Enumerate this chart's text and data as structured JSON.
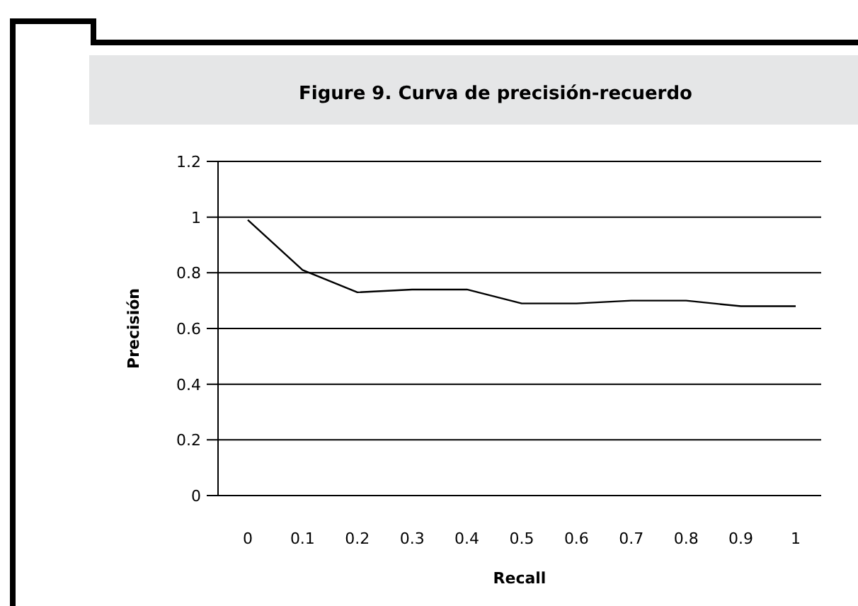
{
  "chart_data": {
    "type": "line",
    "title": "Figure 9. Curva de precisión-recuerdo",
    "xlabel": "Recall",
    "ylabel": "Precisión",
    "categories": [
      "0",
      "0.1",
      "0.2",
      "0.3",
      "0.4",
      "0.5",
      "0.6",
      "0.7",
      "0.8",
      "0.9",
      "1"
    ],
    "series": [
      {
        "color": "#000000",
        "values": [
          0.99,
          0.81,
          0.73,
          0.74,
          0.74,
          0.69,
          0.69,
          0.7,
          0.7,
          0.68,
          0.68
        ]
      }
    ],
    "ylim": [
      0,
      1.2
    ],
    "yticks": [
      0,
      0.2,
      0.4,
      0.6,
      0.8,
      1,
      1.2
    ],
    "grid": "y"
  }
}
